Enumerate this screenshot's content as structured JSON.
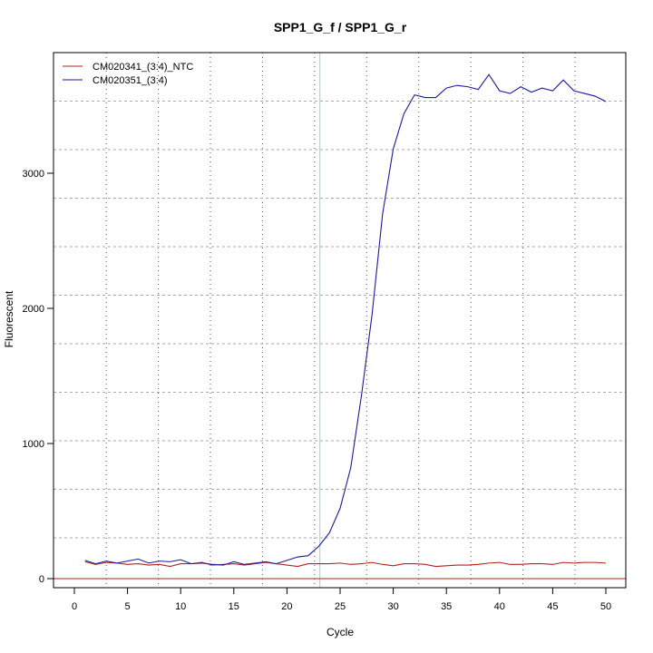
{
  "chart_data": {
    "type": "line",
    "title": "SPP1_G_f / SPP1_G_r",
    "xlabel": "Cycle",
    "ylabel": "Fluorescent",
    "xlim": [
      -2,
      52
    ],
    "ylim": [
      -80,
      3900
    ],
    "xticks": [
      0,
      5,
      10,
      15,
      20,
      25,
      30,
      35,
      40,
      45,
      50
    ],
    "yticks": [
      0,
      1000,
      2000,
      3000
    ],
    "grid": true,
    "legend_position": "top-left",
    "threshold_cycle": 23.1,
    "baseline_value": 0,
    "x": [
      1,
      2,
      3,
      4,
      5,
      6,
      7,
      8,
      9,
      10,
      11,
      12,
      13,
      14,
      15,
      16,
      17,
      18,
      19,
      20,
      21,
      22,
      23,
      24,
      25,
      26,
      27,
      28,
      29,
      30,
      31,
      32,
      33,
      34,
      35,
      36,
      37,
      38,
      39,
      40,
      41,
      42,
      43,
      44,
      45,
      46,
      47,
      48,
      49,
      50
    ],
    "series": [
      {
        "name": "CM020341_(3:4)_NTC",
        "color": "#b22222",
        "values": [
          125,
          105,
          120,
          115,
          105,
          110,
          100,
          105,
          90,
          110,
          110,
          120,
          100,
          105,
          110,
          100,
          110,
          120,
          110,
          100,
          90,
          110,
          110,
          110,
          115,
          105,
          110,
          120,
          105,
          95,
          110,
          110,
          105,
          90,
          95,
          100,
          100,
          105,
          115,
          120,
          105,
          105,
          110,
          110,
          105,
          120,
          115,
          120,
          120,
          115
        ]
      },
      {
        "name": "CM020351_(3:4)",
        "color": "#1a1aa0",
        "values": [
          135,
          110,
          130,
          115,
          130,
          145,
          115,
          130,
          125,
          140,
          110,
          115,
          105,
          100,
          125,
          105,
          115,
          125,
          110,
          135,
          160,
          170,
          240,
          340,
          520,
          820,
          1350,
          1950,
          2700,
          3180,
          3440,
          3580,
          3560,
          3560,
          3630,
          3650,
          3640,
          3620,
          3730,
          3610,
          3590,
          3640,
          3600,
          3630,
          3610,
          3690,
          3610,
          3590,
          3570,
          3530
        ]
      }
    ]
  }
}
